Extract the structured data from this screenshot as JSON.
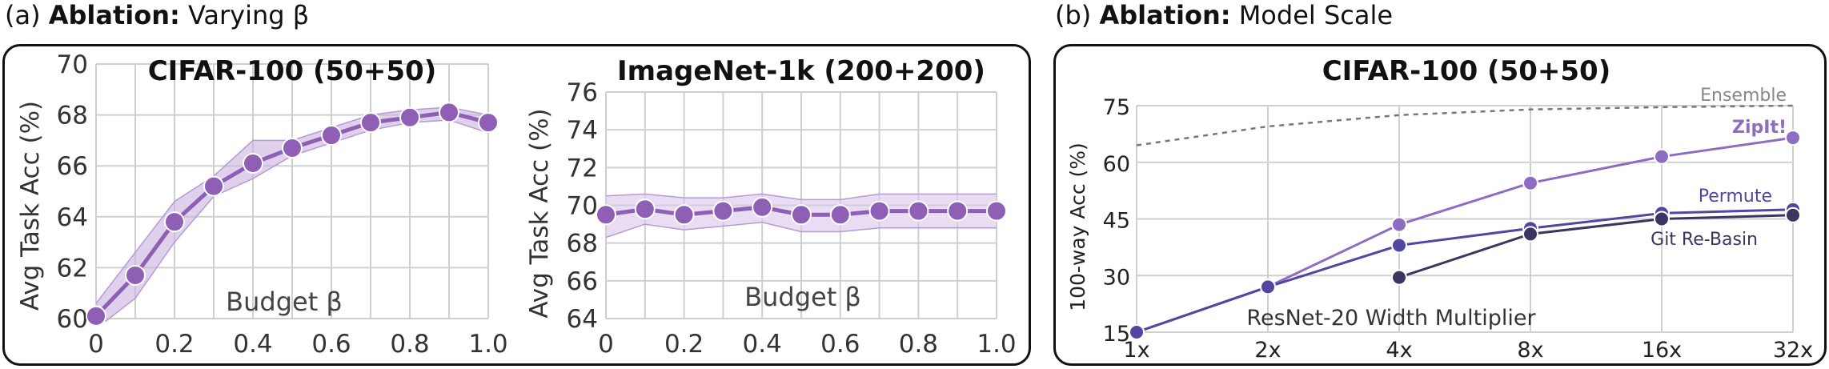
{
  "panels": {
    "a": {
      "prefix": "(a)",
      "bold": "Ablation:",
      "rest": "Varying β"
    },
    "b": {
      "prefix": "(b)",
      "bold": "Ablation:",
      "rest": "Model Scale"
    }
  },
  "chart_data": [
    {
      "type": "line",
      "title": "CIFAR-100 (50+50)",
      "xlabel": "Budget β",
      "ylabel": "Avg Task Acc (%)",
      "xlim": [
        0,
        1.0
      ],
      "ylim": [
        60,
        70
      ],
      "xticks": [
        "0",
        "0.2",
        "0.4",
        "0.6",
        "0.8",
        "1.0"
      ],
      "yticks": [
        "60",
        "62",
        "64",
        "66",
        "68",
        "70"
      ],
      "grid": true,
      "color": "#8e5fb5",
      "band_color": "#c9b3e0",
      "series": [
        {
          "x": [
            0,
            0.1,
            0.2,
            0.3,
            0.4,
            0.5,
            0.6,
            0.7,
            0.8,
            0.9,
            1.0
          ],
          "values": [
            60.1,
            61.7,
            63.8,
            65.2,
            66.1,
            66.7,
            67.2,
            67.7,
            67.9,
            68.1,
            67.7
          ],
          "lower": [
            59.6,
            60.8,
            63.0,
            64.8,
            65.5,
            66.4,
            66.9,
            67.4,
            67.7,
            67.8,
            67.3
          ],
          "upper": [
            60.6,
            62.6,
            64.6,
            65.6,
            67.0,
            67.0,
            67.5,
            68.0,
            68.2,
            68.3,
            68.0
          ]
        }
      ]
    },
    {
      "type": "line",
      "title": "ImageNet-1k (200+200)",
      "xlabel": "Budget β",
      "ylabel": "Avg Task Acc (%)",
      "xlim": [
        0,
        1.0
      ],
      "ylim": [
        64,
        76
      ],
      "xticks": [
        "0",
        "0.2",
        "0.4",
        "0.6",
        "0.8",
        "1.0"
      ],
      "yticks": [
        "64",
        "66",
        "68",
        "70",
        "72",
        "74",
        "76"
      ],
      "grid": true,
      "color": "#8e5fb5",
      "band_color": "#d8c6ea",
      "series": [
        {
          "x": [
            0,
            0.1,
            0.2,
            0.3,
            0.4,
            0.5,
            0.6,
            0.7,
            0.8,
            0.9,
            1.0
          ],
          "values": [
            69.5,
            69.8,
            69.5,
            69.7,
            69.9,
            69.5,
            69.5,
            69.7,
            69.7,
            69.7,
            69.7
          ],
          "lower": [
            68.3,
            69.0,
            68.7,
            68.9,
            69.1,
            68.6,
            68.6,
            68.8,
            68.8,
            68.8,
            68.8
          ],
          "upper": [
            70.5,
            70.6,
            70.4,
            70.4,
            70.6,
            70.3,
            70.3,
            70.6,
            70.6,
            70.6,
            70.6
          ]
        }
      ]
    },
    {
      "type": "line",
      "title": "CIFAR-100 (50+50)",
      "xlabel": "ResNet-20 Width Multiplier",
      "ylabel": "100-way Acc (%)",
      "categories": [
        "1x",
        "2x",
        "4x",
        "8x",
        "16x",
        "32x"
      ],
      "ylim": [
        15,
        75
      ],
      "yticks": [
        "15",
        "30",
        "45",
        "60",
        "75"
      ],
      "grid": true,
      "series": [
        {
          "name": "Ensemble",
          "values": [
            64.5,
            69.5,
            72.5,
            74.0,
            74.6,
            75.0
          ],
          "color": "#777777",
          "style": "dashed"
        },
        {
          "name": "ZipIt!",
          "values": [
            15.0,
            27.0,
            43.5,
            54.5,
            61.5,
            66.5
          ],
          "color": "#8e6cc2"
        },
        {
          "name": "Permute",
          "values": [
            15.0,
            27.0,
            38.0,
            42.5,
            46.5,
            47.5
          ],
          "color": "#4f47a0"
        },
        {
          "name": "Git Re-Basin",
          "values": [
            null,
            null,
            29.5,
            41.0,
            45.0,
            46.0
          ],
          "color": "#3a3660"
        }
      ]
    }
  ]
}
